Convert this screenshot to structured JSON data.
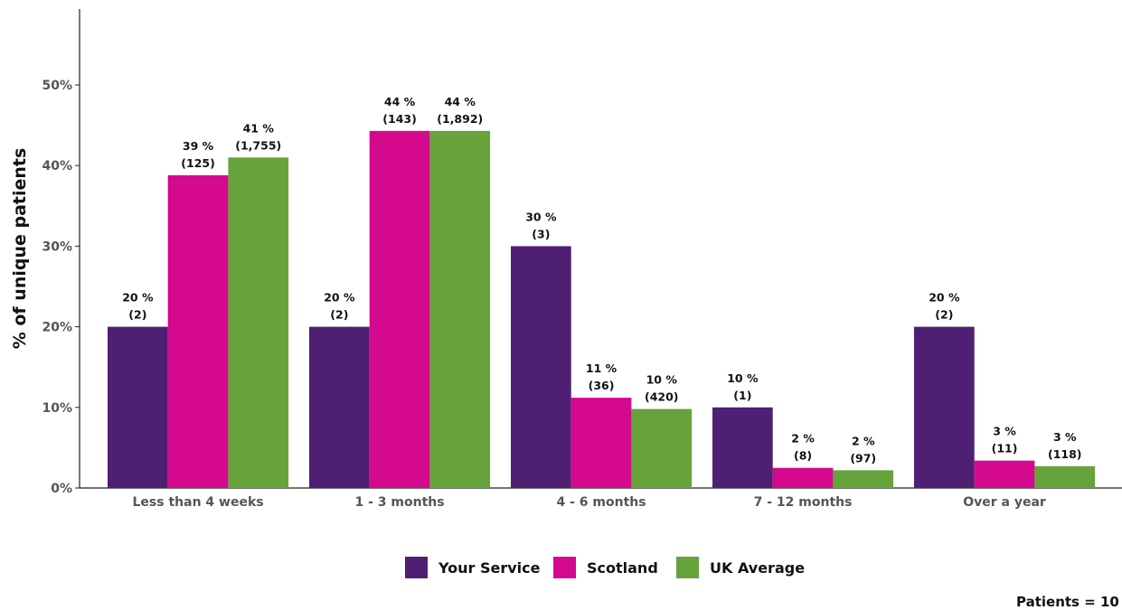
{
  "chart_data": {
    "type": "bar",
    "ylabel": "% of unique patients",
    "ylim": [
      0,
      60
    ],
    "yticks": [
      "0%",
      "10%",
      "20%",
      "30%",
      "40%",
      "50%"
    ],
    "categories": [
      "Less than 4 weeks",
      "1 - 3 months",
      "4 - 6 months",
      "7 - 12 months",
      "Over a year"
    ],
    "series": [
      {
        "name": "Your Service",
        "color": "#4f1f73",
        "values": [
          20,
          20,
          30,
          10,
          20
        ],
        "pct_labels": [
          "20 %",
          "20 %",
          "30 %",
          "10 %",
          "20 %"
        ],
        "count_labels": [
          "(2)",
          "(2)",
          "(3)",
          "(1)",
          "(2)"
        ]
      },
      {
        "name": "Scotland",
        "color": "#d4098e",
        "values": [
          38.8,
          44.3,
          11.2,
          2.5,
          3.4
        ],
        "pct_labels": [
          "39 %",
          "44 %",
          "11 %",
          "2 %",
          "3 %"
        ],
        "count_labels": [
          "(125)",
          "(143)",
          "(36)",
          "(8)",
          "(11)"
        ]
      },
      {
        "name": "UK Average",
        "color": "#67a33b",
        "values": [
          41,
          44.3,
          9.8,
          2.2,
          2.7
        ],
        "pct_labels": [
          "41 %",
          "44 %",
          "10 %",
          "2 %",
          "3 %"
        ],
        "count_labels": [
          "(1,755)",
          "(1,892)",
          "(420)",
          "(97)",
          "(118)"
        ]
      }
    ],
    "legend_position": "bottom",
    "grid": false
  },
  "footer": {
    "patients_label": "Patients = 10"
  }
}
